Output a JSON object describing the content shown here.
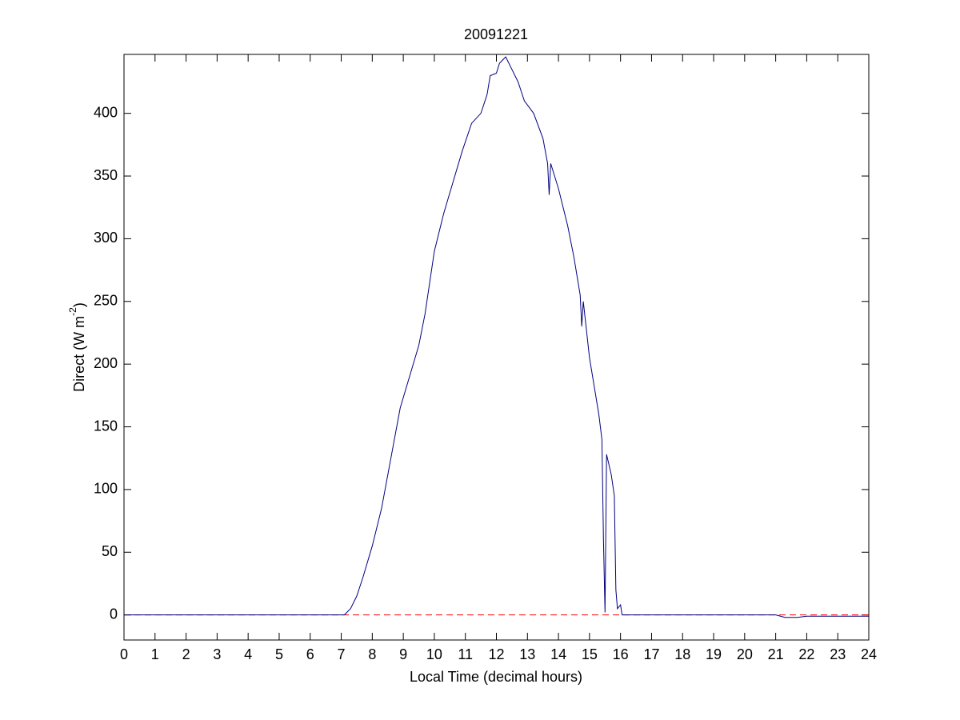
{
  "chart_data": {
    "type": "line",
    "title": "20091221",
    "xlabel": "Local Time (decimal hours)",
    "ylabel_parts": [
      "Direct (W m",
      "-2",
      ")"
    ],
    "xlim": [
      0,
      24
    ],
    "ylim": [
      -20,
      447
    ],
    "xticks": [
      0,
      1,
      2,
      3,
      4,
      5,
      6,
      7,
      8,
      9,
      10,
      11,
      12,
      13,
      14,
      15,
      16,
      17,
      18,
      19,
      20,
      21,
      22,
      23,
      24
    ],
    "yticks": [
      0,
      50,
      100,
      150,
      200,
      250,
      300,
      350,
      400
    ],
    "grid": false,
    "hline": {
      "value": 0,
      "color": "#ff0000",
      "style": "dashed"
    },
    "series": [
      {
        "color": "#000080",
        "x": [
          0,
          1,
          2,
          3,
          4,
          5,
          6,
          7,
          7.1,
          7.3,
          7.5,
          7.7,
          8.0,
          8.3,
          8.6,
          8.9,
          9.2,
          9.5,
          9.7,
          10.0,
          10.3,
          10.6,
          10.9,
          11.2,
          11.5,
          11.7,
          11.8,
          12.0,
          12.1,
          12.3,
          12.5,
          12.7,
          12.9,
          13.2,
          13.5,
          13.65,
          13.7,
          13.75,
          14.0,
          14.3,
          14.5,
          14.7,
          14.75,
          14.8,
          15.0,
          15.2,
          15.3,
          15.4,
          15.45,
          15.5,
          15.55,
          15.7,
          15.8,
          15.85,
          15.9,
          16.0,
          16.05,
          17,
          18,
          19,
          20,
          21,
          21.3,
          21.7,
          22,
          23,
          24
        ],
        "values": [
          0,
          0,
          0,
          0,
          0,
          0,
          0,
          0,
          0,
          5,
          15,
          30,
          55,
          85,
          125,
          165,
          190,
          215,
          240,
          290,
          320,
          345,
          370,
          392,
          400,
          415,
          430,
          432,
          440,
          445,
          435,
          425,
          410,
          400,
          380,
          360,
          335,
          360,
          340,
          310,
          285,
          255,
          230,
          250,
          205,
          175,
          160,
          140,
          60,
          2,
          128,
          112,
          95,
          20,
          5,
          8,
          0,
          0,
          0,
          0,
          0,
          0,
          -2,
          -2,
          -1,
          -1,
          -1
        ]
      }
    ]
  }
}
